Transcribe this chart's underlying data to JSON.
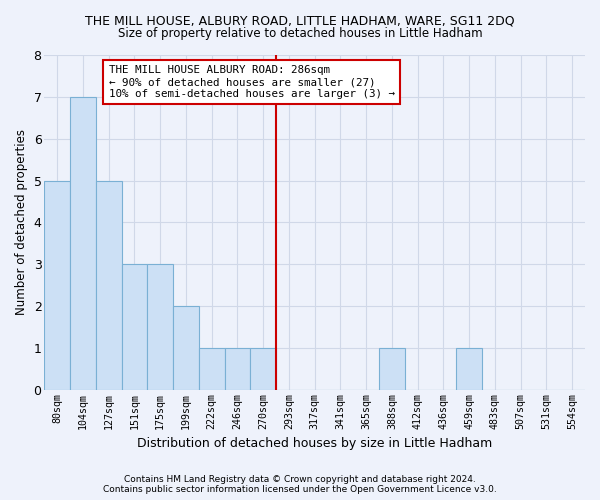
{
  "title": "THE MILL HOUSE, ALBURY ROAD, LITTLE HADHAM, WARE, SG11 2DQ",
  "subtitle": "Size of property relative to detached houses in Little Hadham",
  "xlabel": "Distribution of detached houses by size in Little Hadham",
  "ylabel": "Number of detached properties",
  "footer1": "Contains HM Land Registry data © Crown copyright and database right 2024.",
  "footer2": "Contains public sector information licensed under the Open Government Licence v3.0.",
  "categories": [
    "80sqm",
    "104sqm",
    "127sqm",
    "151sqm",
    "175sqm",
    "199sqm",
    "222sqm",
    "246sqm",
    "270sqm",
    "293sqm",
    "317sqm",
    "341sqm",
    "365sqm",
    "388sqm",
    "412sqm",
    "436sqm",
    "459sqm",
    "483sqm",
    "507sqm",
    "531sqm",
    "554sqm"
  ],
  "values": [
    5,
    7,
    5,
    3,
    3,
    2,
    1,
    1,
    1,
    0,
    0,
    0,
    0,
    1,
    0,
    0,
    1,
    0,
    0,
    0,
    0
  ],
  "bar_color": "#cce0f5",
  "bar_edge_color": "#7ab0d4",
  "grid_color": "#d0d8e8",
  "background_color": "#eef2fb",
  "red_line_index": 8.5,
  "annotation_text": "THE MILL HOUSE ALBURY ROAD: 286sqm\n← 90% of detached houses are smaller (27)\n10% of semi-detached houses are larger (3) →",
  "annotation_box_color": "#ffffff",
  "annotation_box_edge": "#cc0000",
  "ylim": [
    0,
    8
  ],
  "yticks": [
    0,
    1,
    2,
    3,
    4,
    5,
    6,
    7,
    8
  ]
}
